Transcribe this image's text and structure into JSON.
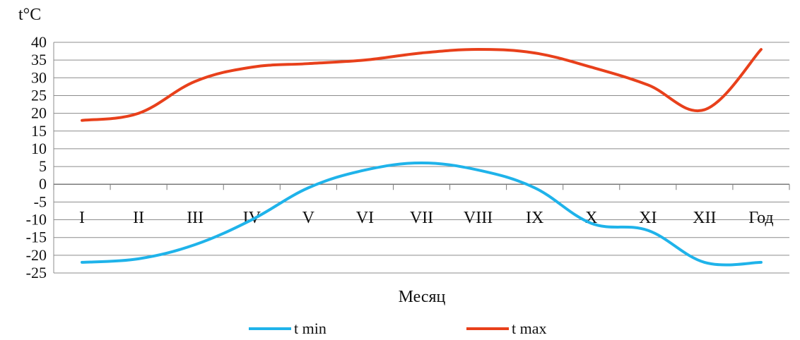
{
  "chart_data": {
    "type": "line",
    "ylabel": "t°C",
    "xlabel": "Месяц",
    "categories": [
      "I",
      "II",
      "III",
      "IV",
      "V",
      "VI",
      "VII",
      "VIII",
      "IX",
      "X",
      "XI",
      "XII",
      "Год"
    ],
    "ylim": [
      -25,
      40
    ],
    "yticks": [
      40,
      35,
      30,
      25,
      20,
      15,
      10,
      5,
      0,
      -5,
      -10,
      -15,
      -20,
      -25
    ],
    "grid": true,
    "legend_position": "bottom",
    "series": [
      {
        "name": "t min",
        "color": "#1fb3ea",
        "values": [
          -22,
          -21,
          -17,
          -10,
          -1,
          4,
          6,
          4,
          -1,
          -11,
          -13,
          -22,
          -22
        ]
      },
      {
        "name": "t max",
        "color": "#e8401b",
        "values": [
          18,
          20,
          29,
          33,
          34,
          35,
          37,
          38,
          37,
          33,
          28,
          21,
          38
        ]
      }
    ]
  }
}
